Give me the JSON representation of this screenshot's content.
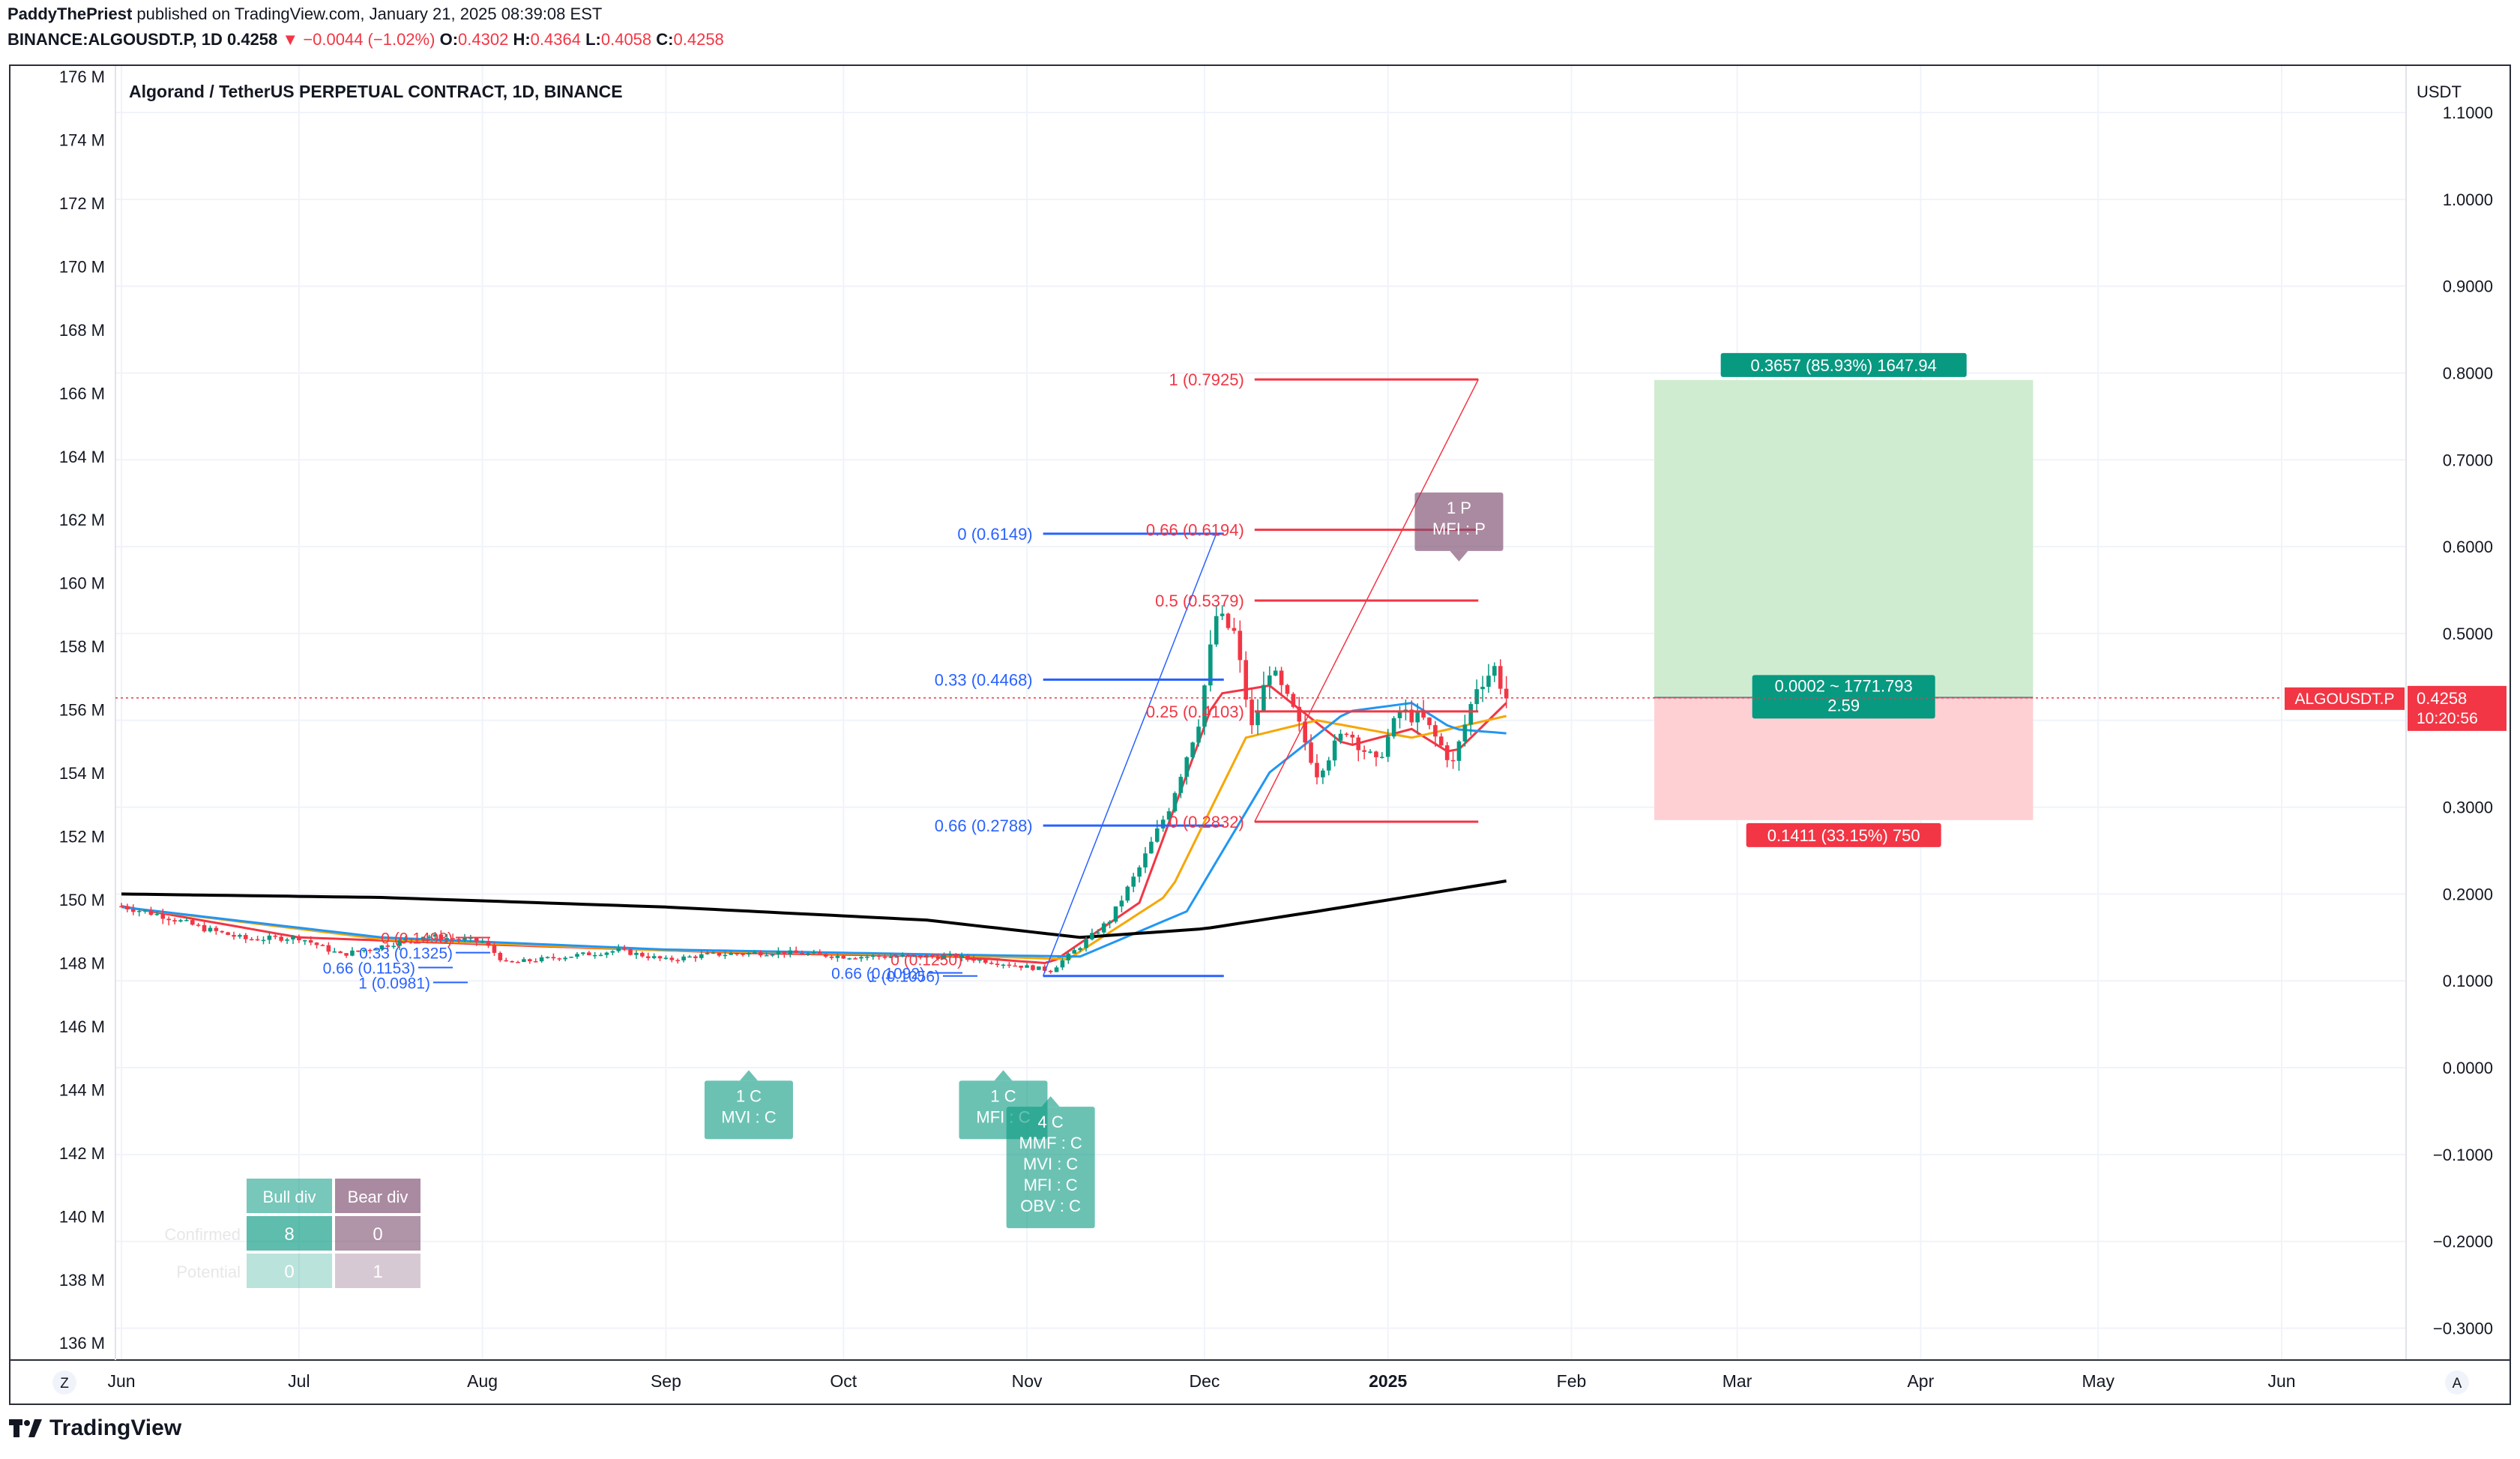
{
  "header": {
    "author": "PaddyThePriest",
    "published": "published on TradingView.com, January 21, 2025 08:39:08 EST",
    "symbol": "BINANCE:ALGOUSDT.P, 1D",
    "last": "0.4258",
    "arrow": "▼",
    "change": "−0.0044 (−1.02%)",
    "o_label": "O:",
    "o": "0.4302",
    "h_label": "H:",
    "h": "0.4364",
    "l_label": "L:",
    "l": "0.4058",
    "c_label": "C:",
    "c": "0.4258"
  },
  "chart_title": "Algorand / TetherUS PERPETUAL CONTRACT, 1D, BINANCE",
  "currency": "USDT",
  "footer_brand": "TradingView",
  "colors": {
    "up": "#089981",
    "down": "#f23645",
    "fast_ma": "#f23645",
    "mid_ma": "#f7a600",
    "slow_ma": "#2196f3",
    "long_ma": "#000000",
    "fib_blue": "#2962ff",
    "fib_red": "#f23645",
    "grid": "#f0f3fa",
    "profit": "#cfecd0",
    "loss": "#ffd0d3"
  },
  "chart_data": {
    "type": "candlestick",
    "x_axis": [
      "Jun",
      "Jul",
      "Aug",
      "Sep",
      "Oct",
      "Nov",
      "Dec",
      "2025",
      "Feb",
      "Mar",
      "Apr",
      "May",
      "Jun"
    ],
    "left_axis": {
      "ticks": [
        "176 M",
        "174 M",
        "172 M",
        "170 M",
        "168 M",
        "166 M",
        "164 M",
        "162 M",
        "160 M",
        "158 M",
        "156 M",
        "154 M",
        "152 M",
        "150 M",
        "148 M",
        "146 M",
        "144 M",
        "142 M",
        "140 M",
        "138 M",
        "136 M"
      ]
    },
    "right_axis": {
      "ticks": [
        "1.1000",
        "1.0000",
        "0.9000",
        "0.8000",
        "0.7000",
        "0.6000",
        "0.5000",
        "0.4000",
        "0.3000",
        "0.2000",
        "0.1000",
        "0.0000",
        "−0.1000",
        "−0.2000",
        "−0.3000"
      ],
      "range": [
        -0.34,
        1.21
      ]
    },
    "last_price": {
      "label": "ALGOUSDT.P",
      "price": "0.4258",
      "countdown": "10:20:56",
      "value": 0.4258
    },
    "ohlc_anchor_points": [
      [
        "2024-06-01",
        0.186
      ],
      [
        "2024-06-08",
        0.175
      ],
      [
        "2024-06-15",
        0.16
      ],
      [
        "2024-06-22",
        0.148
      ],
      [
        "2024-07-01",
        0.15
      ],
      [
        "2024-07-08",
        0.13
      ],
      [
        "2024-07-15",
        0.14
      ],
      [
        "2024-07-22",
        0.152
      ],
      [
        "2024-08-01",
        0.145
      ],
      [
        "2024-08-05",
        0.12
      ],
      [
        "2024-08-15",
        0.128
      ],
      [
        "2024-08-24",
        0.135
      ],
      [
        "2024-09-01",
        0.124
      ],
      [
        "2024-09-08",
        0.13
      ],
      [
        "2024-09-20",
        0.133
      ],
      [
        "2024-10-01",
        0.128
      ],
      [
        "2024-10-10",
        0.128
      ],
      [
        "2024-10-20",
        0.128
      ],
      [
        "2024-11-01",
        0.116
      ],
      [
        "2024-11-05",
        0.112
      ],
      [
        "2024-11-10",
        0.14
      ],
      [
        "2024-11-15",
        0.17
      ],
      [
        "2024-11-20",
        0.23
      ],
      [
        "2024-11-25",
        0.3
      ],
      [
        "2024-11-30",
        0.4
      ],
      [
        "2024-12-03",
        0.52
      ],
      [
        "2024-12-06",
        0.5
      ],
      [
        "2024-12-09",
        0.39
      ],
      [
        "2024-12-12",
        0.46
      ],
      [
        "2024-12-16",
        0.41
      ],
      [
        "2024-12-20",
        0.34
      ],
      [
        "2024-12-25",
        0.39
      ],
      [
        "2024-12-30",
        0.35
      ],
      [
        "2025-01-03",
        0.41
      ],
      [
        "2025-01-07",
        0.4
      ],
      [
        "2025-01-12",
        0.35
      ],
      [
        "2025-01-16",
        0.44
      ],
      [
        "2025-01-19",
        0.46
      ],
      [
        "2025-01-21",
        0.4258
      ]
    ],
    "moving_averages": [
      {
        "name": "fast",
        "color": "#f23645",
        "points": [
          [
            "2024-06-01",
            0.186
          ],
          [
            "2024-07-01",
            0.15
          ],
          [
            "2024-08-10",
            0.14
          ],
          [
            "2024-09-15",
            0.132
          ],
          [
            "2024-10-20",
            0.128
          ],
          [
            "2024-11-05",
            0.12
          ],
          [
            "2024-11-20",
            0.19
          ],
          [
            "2024-12-03",
            0.43
          ],
          [
            "2024-12-12",
            0.44
          ],
          [
            "2024-12-25",
            0.37
          ],
          [
            "2025-01-05",
            0.39
          ],
          [
            "2025-01-12",
            0.36
          ],
          [
            "2025-01-21",
            0.42
          ]
        ]
      },
      {
        "name": "mid",
        "color": "#f7a600",
        "points": [
          [
            "2024-06-01",
            0.185
          ],
          [
            "2024-07-15",
            0.148
          ],
          [
            "2024-09-01",
            0.135
          ],
          [
            "2024-10-20",
            0.129
          ],
          [
            "2024-11-08",
            0.125
          ],
          [
            "2024-11-25",
            0.2
          ],
          [
            "2024-12-08",
            0.38
          ],
          [
            "2024-12-20",
            0.4
          ],
          [
            "2025-01-05",
            0.38
          ],
          [
            "2025-01-21",
            0.405
          ]
        ]
      },
      {
        "name": "slow",
        "color": "#2196f3",
        "points": [
          [
            "2024-06-01",
            0.185
          ],
          [
            "2024-07-15",
            0.15
          ],
          [
            "2024-09-01",
            0.136
          ],
          [
            "2024-10-20",
            0.13
          ],
          [
            "2024-11-10",
            0.128
          ],
          [
            "2024-11-28",
            0.18
          ],
          [
            "2024-12-12",
            0.34
          ],
          [
            "2024-12-25",
            0.41
          ],
          [
            "2025-01-05",
            0.42
          ],
          [
            "2025-01-12",
            0.39
          ],
          [
            "2025-01-21",
            0.385
          ]
        ]
      },
      {
        "name": "long",
        "color": "#000000",
        "points": [
          [
            "2024-06-01",
            0.2
          ],
          [
            "2024-07-15",
            0.196
          ],
          [
            "2024-09-01",
            0.185
          ],
          [
            "2024-10-15",
            0.17
          ],
          [
            "2024-11-10",
            0.15
          ],
          [
            "2024-12-01",
            0.16
          ],
          [
            "2024-12-20",
            0.18
          ],
          [
            "2025-01-21",
            0.215
          ]
        ]
      }
    ],
    "fib_blue": {
      "levels": [
        {
          "label": "0 (0.6149)",
          "value": 0.6149
        },
        {
          "label": "0.33 (0.4468)",
          "value": 0.4468
        },
        {
          "label": "0.66 (0.2788)",
          "value": 0.2788
        }
      ],
      "bottom_value": 0.1056,
      "from": "2024-11-05",
      "to": "2024-12-03"
    },
    "fib_red": {
      "levels": [
        {
          "label": "1 (0.7925)",
          "value": 0.7925
        },
        {
          "label": "0.66 (0.6194)",
          "value": 0.6194
        },
        {
          "label": "0.5 (0.5379)",
          "value": 0.5379
        },
        {
          "label": "0.25 (0.4103)",
          "value": 0.4103
        },
        {
          "label": "0 (0.2832)",
          "value": 0.2832
        }
      ],
      "from": "2024-12-12",
      "to": "2025-01-15"
    },
    "clustered_fib_labels": [
      "0 (0.1498)",
      "0.33 (0.1325)",
      "0.66 (0.1153)",
      "1 (0.0981)",
      "0 (0.1250)",
      "0.66 (0.1092)",
      "1 (0.1056)"
    ],
    "position": {
      "from": "2025-02-15",
      "to": "2025-04-20",
      "entry": 0.4262,
      "target": 0.7919,
      "stop": 0.2851,
      "target_label": "0.3657 (85.93%) 1647.94",
      "entry_label_1": "0.0002 ~ 1771.793",
      "entry_label_2": "2.59",
      "stop_label": "0.1411 (33.15%) 750"
    },
    "signals": [
      {
        "lines": [
          "1 C",
          "MVI : C"
        ],
        "kind": "bull",
        "date": "2024-09-15",
        "price": -0.015
      },
      {
        "lines": [
          "1 C",
          "MFI : C"
        ],
        "kind": "bull",
        "date": "2024-10-28",
        "price": -0.015
      },
      {
        "lines": [
          "4 C",
          "MMF : C",
          "MVI : C",
          "MFI : C",
          "OBV : C"
        ],
        "kind": "bull",
        "date": "2024-11-05",
        "price": -0.045
      },
      {
        "lines": [
          "1 P",
          "MFI : P"
        ],
        "kind": "bear",
        "date": "2025-01-13",
        "price": 0.595
      }
    ],
    "div_table": {
      "headers": [
        "Bull div",
        "Bear div"
      ],
      "rows": [
        [
          "Confirmed",
          "8",
          "0"
        ],
        [
          "Potential",
          "0",
          "1"
        ]
      ]
    },
    "axis_buttons": {
      "left": "Z",
      "right": "A"
    }
  }
}
